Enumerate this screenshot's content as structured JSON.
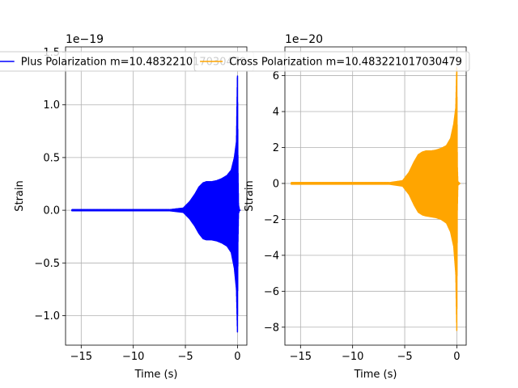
{
  "chart_data": [
    {
      "type": "line",
      "title": "",
      "xlabel": "Time (s)",
      "ylabel": "Strain",
      "offset_text": "1e−19",
      "xlim": [
        -16.5,
        0.9
      ],
      "ylim": [
        -1.28,
        1.55
      ],
      "y_scale": 1e-19,
      "xticks": [
        -15,
        -10,
        -5,
        0
      ],
      "xtick_labels": [
        "−15",
        "−10",
        "−5",
        "0"
      ],
      "yticks": [
        -1.0,
        -0.5,
        0.0,
        0.5,
        1.0,
        1.5
      ],
      "ytick_labels": [
        "−1.0",
        "−0.5",
        "0.0",
        "0.5",
        "1.0",
        "1.5"
      ],
      "grid": true,
      "legend_position": "top-center",
      "color": "#0000ff",
      "series": [
        {
          "name": "Plus Polarization m=10.483221017030479",
          "t_start": -15.9,
          "t_end": 0.3,
          "envelope": {
            "t": [
              -15.9,
              -10.0,
              -6.5,
              -5.2,
              -4.6,
              -4.1,
              -3.7,
              -3.3,
              -3.0,
              -2.5,
              -2.0,
              -1.5,
              -1.0,
              -0.6,
              -0.3,
              -0.1,
              0.0,
              0.05,
              0.1,
              0.2,
              0.3
            ],
            "upper": [
              0.005,
              0.005,
              0.005,
              0.02,
              0.08,
              0.15,
              0.22,
              0.26,
              0.27,
              0.27,
              0.28,
              0.3,
              0.33,
              0.38,
              0.5,
              0.65,
              1.33,
              0.4,
              0.05,
              0.0,
              0.0
            ],
            "lower": [
              -0.005,
              -0.005,
              -0.005,
              -0.02,
              -0.08,
              -0.15,
              -0.22,
              -0.27,
              -0.28,
              -0.28,
              -0.29,
              -0.31,
              -0.34,
              -0.4,
              -0.55,
              -0.75,
              -1.17,
              -0.3,
              -0.03,
              0.0,
              0.0
            ]
          }
        }
      ]
    },
    {
      "type": "line",
      "title": "",
      "xlabel": "Time (s)",
      "ylabel": "Strain",
      "offset_text": "1e−20",
      "xlim": [
        -16.5,
        0.9
      ],
      "ylim": [
        -9.0,
        7.6
      ],
      "y_scale": 1e-20,
      "xticks": [
        -15,
        -10,
        -5,
        0
      ],
      "xtick_labels": [
        "−15",
        "−10",
        "−5",
        "0"
      ],
      "yticks": [
        -8,
        -6,
        -4,
        -2,
        0,
        2,
        4,
        6
      ],
      "ytick_labels": [
        "−8",
        "−6",
        "−4",
        "−2",
        "0",
        "2",
        "4",
        "6"
      ],
      "grid": true,
      "legend_position": "top-center",
      "color": "#ffa500",
      "series": [
        {
          "name": "Cross Polarization m=10.483221017030479",
          "t_start": -15.9,
          "t_end": 0.3,
          "envelope": {
            "t": [
              -15.9,
              -10.0,
              -6.5,
              -5.2,
              -4.6,
              -4.1,
              -3.7,
              -3.3,
              -3.0,
              -2.5,
              -2.0,
              -1.5,
              -1.0,
              -0.6,
              -0.3,
              -0.1,
              0.0,
              0.05,
              0.1,
              0.2,
              0.3
            ],
            "upper": [
              0.04,
              0.04,
              0.04,
              0.15,
              0.6,
              1.2,
              1.6,
              1.75,
              1.8,
              1.8,
              1.85,
              1.95,
              2.1,
              2.5,
              3.3,
              4.2,
              6.7,
              1.0,
              0.1,
              0.05,
              0.0
            ],
            "lower": [
              -0.04,
              -0.04,
              -0.04,
              -0.15,
              -0.6,
              -1.2,
              -1.6,
              -1.75,
              -1.8,
              -1.85,
              -1.9,
              -2.0,
              -2.2,
              -2.7,
              -3.5,
              -5.0,
              -8.3,
              -1.5,
              -0.1,
              -0.05,
              0.0
            ]
          }
        }
      ]
    }
  ]
}
